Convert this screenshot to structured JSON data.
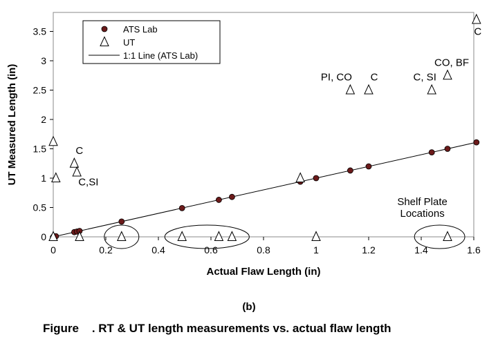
{
  "chart_data": {
    "type": "scatter",
    "xlabel": "Actual Flaw Length (in)",
    "ylabel": "UT Measured Length (in)",
    "xlim": [
      0,
      1.6
    ],
    "ylim": [
      0,
      3.5
    ],
    "xticks": [
      "0",
      "0.2",
      "0.4",
      "0.6",
      "0.8",
      "1",
      "1.2",
      "1.4",
      "1.6"
    ],
    "yticks": [
      "0",
      "0.5",
      "1",
      "1.5",
      "2",
      "2.5",
      "3",
      "3.5"
    ],
    "grid": false,
    "legend_position": "top-left",
    "series": [
      {
        "name": "ATS Lab",
        "marker": "circle",
        "color": "#6b1a1a",
        "x": [
          0,
          0.01,
          0.08,
          0.09,
          0.1,
          0.26,
          0.49,
          0.63,
          0.68,
          0.94,
          1.0,
          1.13,
          1.2,
          1.44,
          1.5,
          1.61
        ],
        "y": [
          0,
          0.01,
          0.08,
          0.09,
          0.1,
          0.26,
          0.49,
          0.63,
          0.68,
          0.94,
          1.0,
          1.13,
          1.2,
          1.44,
          1.5,
          1.61
        ]
      },
      {
        "name": "UT",
        "marker": "triangle-open",
        "color": "#000000",
        "x": [
          0,
          0,
          0.01,
          0.08,
          0.09,
          0.1,
          0.26,
          0.49,
          0.63,
          0.68,
          0.94,
          1.0,
          1.13,
          1.2,
          1.44,
          1.5,
          1.5,
          1.61
        ],
        "y": [
          0,
          1.62,
          1.0,
          1.25,
          1.1,
          0,
          0,
          0,
          0,
          0,
          1.0,
          0,
          2.5,
          2.5,
          2.5,
          0,
          2.75,
          3.7
        ]
      },
      {
        "name": "1:1 Line (ATS Lab)",
        "type": "line",
        "color": "#000000",
        "x": [
          0,
          1.61
        ],
        "y": [
          0,
          1.61
        ]
      }
    ],
    "annotations": [
      {
        "text": "C",
        "x": 0.08,
        "y": 1.25
      },
      {
        "text": "C,SI",
        "x": 0.09,
        "y": 1.1
      },
      {
        "text": "PI, CO",
        "x": 1.13,
        "y": 2.5
      },
      {
        "text": "C",
        "x": 1.2,
        "y": 2.5
      },
      {
        "text": "C, SI",
        "x": 1.44,
        "y": 2.5
      },
      {
        "text": "CO, BF",
        "x": 1.5,
        "y": 2.75
      },
      {
        "text": "C",
        "x": 1.61,
        "y": 3.7
      },
      {
        "text": "Shelf Plate",
        "x": 1.42,
        "y": 0.6
      },
      {
        "text": "Locations",
        "x": 1.42,
        "y": 0.4
      }
    ],
    "ellipses_around_x": [
      [
        0.26
      ],
      [
        0.49,
        0.68
      ],
      [
        1.44,
        1.5
      ]
    ]
  },
  "figure": {
    "sublabel": "(b)",
    "caption": "Figure    . RT & UT length measurements vs. actual flaw length"
  }
}
